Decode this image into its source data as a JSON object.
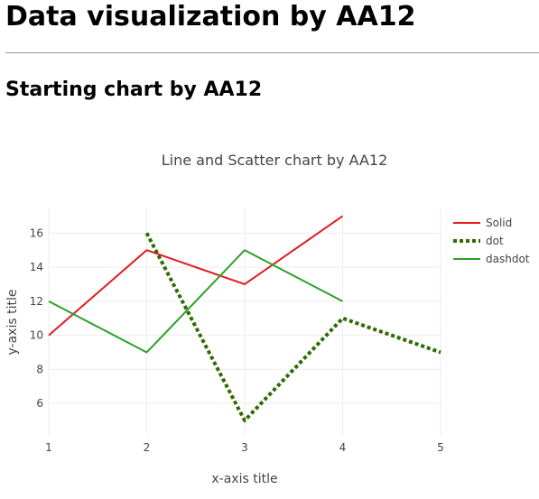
{
  "page": {
    "title": "Data visualization by AA12",
    "section_title": "Starting chart by AA12"
  },
  "chart_data": {
    "type": "line",
    "title": "Line and Scatter chart by AA12",
    "xlabel": "x-axis title",
    "ylabel": "y-axis title",
    "xlim": [
      1,
      5
    ],
    "ylim": [
      4.1,
      17.5
    ],
    "x_ticks": [
      1,
      2,
      3,
      4,
      5
    ],
    "y_ticks": [
      6,
      8,
      10,
      12,
      14,
      16
    ],
    "grid": true,
    "legend_position": "top-right",
    "series": [
      {
        "name": "Solid",
        "x": [
          1,
          2,
          3,
          4
        ],
        "y": [
          10,
          15,
          13,
          17
        ],
        "color": "#e31a1c",
        "dash": "solid"
      },
      {
        "name": "dot",
        "x": [
          2,
          3,
          4,
          5
        ],
        "y": [
          16,
          5,
          11,
          9
        ],
        "color": "#2f6b00",
        "dash": "dot"
      },
      {
        "name": "dashdot",
        "x": [
          1,
          2,
          3,
          4
        ],
        "y": [
          12,
          9,
          15,
          12
        ],
        "color": "#2ca02c",
        "dash": "solid"
      }
    ]
  }
}
